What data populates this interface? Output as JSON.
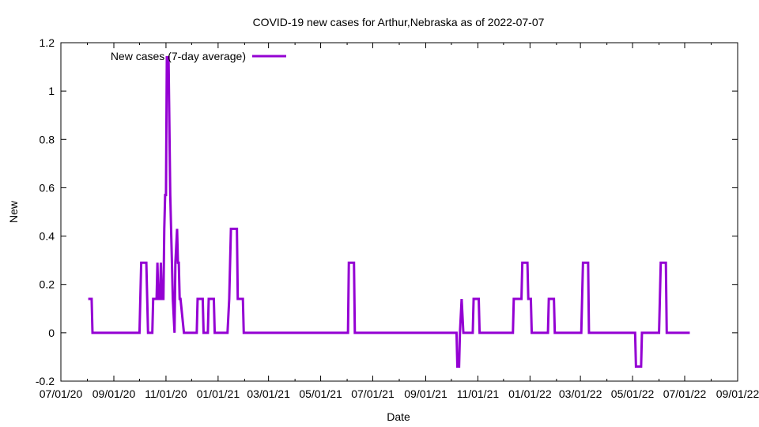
{
  "chart_data": {
    "type": "line",
    "title": "COVID-19 new cases for Arthur,Nebraska as of 2022-07-07",
    "xlabel": "Date",
    "ylabel": "New",
    "x_range": [
      "2020-07-01",
      "2022-09-01"
    ],
    "ylim": [
      -0.2,
      1.2
    ],
    "y_ticks": [
      -0.2,
      0,
      0.2,
      0.4,
      0.6,
      0.8,
      1,
      1.2
    ],
    "y_tick_labels": [
      "-0.2",
      "0",
      "0.2",
      "0.4",
      "0.6",
      "0.8",
      "1",
      "1.2"
    ],
    "x_ticks": [
      "2020-07-01",
      "2020-09-01",
      "2020-11-01",
      "2021-01-01",
      "2021-03-01",
      "2021-05-01",
      "2021-07-01",
      "2021-09-01",
      "2021-11-01",
      "2022-01-01",
      "2022-03-01",
      "2022-05-01",
      "2022-07-01",
      "2022-09-01"
    ],
    "x_tick_labels": [
      "07/01/20",
      "09/01/20",
      "11/01/20",
      "01/01/21",
      "03/01/21",
      "05/01/21",
      "07/01/21",
      "09/01/21",
      "11/01/21",
      "01/01/22",
      "03/01/22",
      "05/01/22",
      "07/01/22",
      "09/01/22"
    ],
    "legend_position": "top-left",
    "grid": false,
    "series": [
      {
        "name": "New cases (7-day average)",
        "color": "#9400d3",
        "points": [
          [
            "2020-08-02",
            0.14
          ],
          [
            "2020-08-06",
            0.14
          ],
          [
            "2020-08-07",
            0
          ],
          [
            "2020-10-01",
            0
          ],
          [
            "2020-10-03",
            0.29
          ],
          [
            "2020-10-09",
            0.29
          ],
          [
            "2020-10-11",
            0
          ],
          [
            "2020-10-16",
            0
          ],
          [
            "2020-10-17",
            0.14
          ],
          [
            "2020-10-21",
            0.14
          ],
          [
            "2020-10-22",
            0.29
          ],
          [
            "2020-10-23",
            0.14
          ],
          [
            "2020-10-25",
            0.14
          ],
          [
            "2020-10-26",
            0.29
          ],
          [
            "2020-10-27",
            0.14
          ],
          [
            "2020-10-29",
            0.14
          ],
          [
            "2020-10-30",
            0.43
          ],
          [
            "2020-10-31",
            0.57
          ],
          [
            "2020-11-01",
            0.57
          ],
          [
            "2020-11-02",
            1.14
          ],
          [
            "2020-11-04",
            1.14
          ],
          [
            "2020-11-06",
            0.57
          ],
          [
            "2020-11-09",
            0.14
          ],
          [
            "2020-11-11",
            0
          ],
          [
            "2020-11-12",
            0.29
          ],
          [
            "2020-11-14",
            0.43
          ],
          [
            "2020-11-15",
            0.29
          ],
          [
            "2020-11-16",
            0.29
          ],
          [
            "2020-11-17",
            0.14
          ],
          [
            "2020-11-18",
            0.14
          ],
          [
            "2020-11-22",
            0
          ],
          [
            "2020-12-07",
            0
          ],
          [
            "2020-12-08",
            0.14
          ],
          [
            "2020-12-14",
            0.14
          ],
          [
            "2020-12-15",
            0
          ],
          [
            "2020-12-20",
            0
          ],
          [
            "2020-12-21",
            0.14
          ],
          [
            "2020-12-27",
            0.14
          ],
          [
            "2020-12-28",
            0
          ],
          [
            "2021-01-12",
            0
          ],
          [
            "2021-01-14",
            0.14
          ],
          [
            "2021-01-16",
            0.43
          ],
          [
            "2021-01-23",
            0.43
          ],
          [
            "2021-01-24",
            0.14
          ],
          [
            "2021-01-30",
            0.14
          ],
          [
            "2021-01-31",
            0
          ],
          [
            "2021-06-02",
            0
          ],
          [
            "2021-06-03",
            0.29
          ],
          [
            "2021-06-09",
            0.29
          ],
          [
            "2021-06-10",
            0
          ],
          [
            "2021-10-07",
            0
          ],
          [
            "2021-10-08",
            -0.14
          ],
          [
            "2021-10-10",
            -0.14
          ],
          [
            "2021-10-11",
            0
          ],
          [
            "2021-10-13",
            0.14
          ],
          [
            "2021-10-15",
            0
          ],
          [
            "2021-10-26",
            0
          ],
          [
            "2021-10-27",
            0.14
          ],
          [
            "2021-11-02",
            0.14
          ],
          [
            "2021-11-03",
            0
          ],
          [
            "2021-12-12",
            0
          ],
          [
            "2021-12-13",
            0.14
          ],
          [
            "2021-12-22",
            0.14
          ],
          [
            "2021-12-23",
            0.29
          ],
          [
            "2021-12-29",
            0.29
          ],
          [
            "2021-12-30",
            0.14
          ],
          [
            "2022-01-02",
            0.14
          ],
          [
            "2022-01-03",
            0
          ],
          [
            "2022-01-22",
            0
          ],
          [
            "2022-01-23",
            0.14
          ],
          [
            "2022-01-29",
            0.14
          ],
          [
            "2022-01-30",
            0
          ],
          [
            "2022-03-02",
            0
          ],
          [
            "2022-03-04",
            0.29
          ],
          [
            "2022-03-10",
            0.29
          ],
          [
            "2022-03-11",
            0
          ],
          [
            "2022-05-04",
            0
          ],
          [
            "2022-05-05",
            -0.14
          ],
          [
            "2022-05-11",
            -0.14
          ],
          [
            "2022-05-12",
            0
          ],
          [
            "2022-06-01",
            0
          ],
          [
            "2022-06-03",
            0.29
          ],
          [
            "2022-06-09",
            0.29
          ],
          [
            "2022-06-10",
            0
          ],
          [
            "2022-07-07",
            0
          ]
        ]
      }
    ]
  }
}
